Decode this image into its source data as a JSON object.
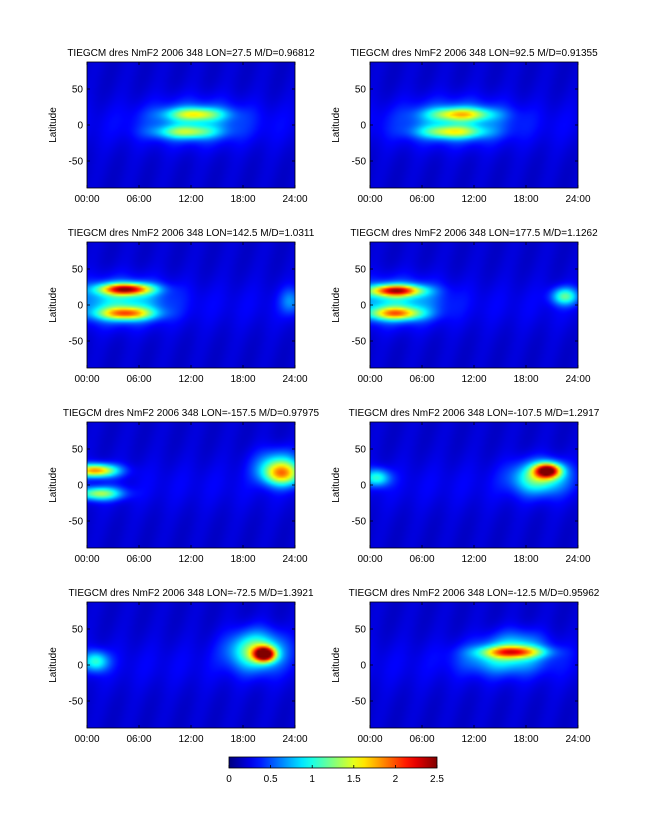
{
  "chart_data": [
    {
      "type": "heatmap",
      "title": "TIEGCM dres NmF2 2006 348 LON=27.5 M/D=0.96812",
      "xlabel": "",
      "ylabel": "Latitude",
      "xticks": [
        "00:00",
        "06:00",
        "12:00",
        "18:00",
        "24:00"
      ],
      "xlim": [
        0,
        24
      ],
      "yticks": [
        50,
        0,
        -50
      ],
      "ylim": [
        -87.5,
        87.5
      ],
      "blobs": [
        {
          "t": 12.5,
          "lat": 15,
          "st": 3.2,
          "sl": 9,
          "amp": 0.95
        },
        {
          "t": 11.5,
          "lat": -10,
          "st": 3.4,
          "sl": 9,
          "amp": 0.85
        },
        {
          "t": 12.5,
          "lat": 5,
          "st": 5.5,
          "sl": 28,
          "amp": 0.45
        }
      ]
    },
    {
      "type": "heatmap",
      "title": "TIEGCM dres NmF2 2006 348 LON=92.5 M/D=0.91355",
      "xlabel": "",
      "ylabel": "Latitude",
      "xticks": [
        "00:00",
        "06:00",
        "12:00",
        "18:00",
        "24:00"
      ],
      "xlim": [
        0,
        24
      ],
      "yticks": [
        50,
        0,
        -50
      ],
      "ylim": [
        -87.5,
        87.5
      ],
      "blobs": [
        {
          "t": 10.5,
          "lat": 15,
          "st": 3.5,
          "sl": 9,
          "amp": 1.05
        },
        {
          "t": 9.5,
          "lat": -10,
          "st": 3.6,
          "sl": 9,
          "amp": 0.95
        },
        {
          "t": 10,
          "lat": 5,
          "st": 6,
          "sl": 28,
          "amp": 0.5
        }
      ]
    },
    {
      "type": "heatmap",
      "title": "TIEGCM dres NmF2 2006 348 LON=142.5 M/D=1.0311",
      "xlabel": "",
      "ylabel": "Latitude",
      "xticks": [
        "00:00",
        "06:00",
        "12:00",
        "18:00",
        "24:00"
      ],
      "xlim": [
        0,
        24
      ],
      "yticks": [
        50,
        0,
        -50
      ],
      "ylim": [
        -87.5,
        87.5
      ],
      "blobs": [
        {
          "t": 4.5,
          "lat": 22,
          "st": 3,
          "sl": 8,
          "amp": 1.85
        },
        {
          "t": 4.5,
          "lat": -12,
          "st": 3.2,
          "sl": 9,
          "amp": 1.35
        },
        {
          "t": 4,
          "lat": 5,
          "st": 5,
          "sl": 28,
          "amp": 0.65
        },
        {
          "t": 23.5,
          "lat": 5,
          "st": 1.2,
          "sl": 18,
          "amp": 0.4
        }
      ]
    },
    {
      "type": "heatmap",
      "title": "TIEGCM dres NmF2 2006 348 LON=177.5 M/D=1.1262",
      "xlabel": "",
      "ylabel": "Latitude",
      "xticks": [
        "00:00",
        "06:00",
        "12:00",
        "18:00",
        "24:00"
      ],
      "xlim": [
        0,
        24
      ],
      "yticks": [
        50,
        0,
        -50
      ],
      "ylim": [
        -87.5,
        87.5
      ],
      "blobs": [
        {
          "t": 3,
          "lat": 20,
          "st": 3,
          "sl": 8,
          "amp": 1.75
        },
        {
          "t": 3,
          "lat": -12,
          "st": 3,
          "sl": 9,
          "amp": 1.3
        },
        {
          "t": 3,
          "lat": 5,
          "st": 5,
          "sl": 28,
          "amp": 0.6
        },
        {
          "t": 22.5,
          "lat": 12,
          "st": 1.5,
          "sl": 12,
          "amp": 0.9
        }
      ]
    },
    {
      "type": "heatmap",
      "title": "TIEGCM dres NmF2 2006 348 LON=-157.5 M/D=0.97975",
      "xlabel": "",
      "ylabel": "Latitude",
      "xticks": [
        "00:00",
        "06:00",
        "12:00",
        "18:00",
        "24:00"
      ],
      "xlim": [
        0,
        24
      ],
      "yticks": [
        50,
        0,
        -50
      ],
      "ylim": [
        -87.5,
        87.5
      ],
      "blobs": [
        {
          "t": 1,
          "lat": 20,
          "st": 2.5,
          "sl": 9,
          "amp": 1.6
        },
        {
          "t": 1.5,
          "lat": -12,
          "st": 2.5,
          "sl": 9,
          "amp": 1.1
        },
        {
          "t": 22.5,
          "lat": 15,
          "st": 2.2,
          "sl": 16,
          "amp": 1.3
        },
        {
          "t": 22,
          "lat": 30,
          "st": 2.5,
          "sl": 20,
          "amp": 0.6
        }
      ]
    },
    {
      "type": "heatmap",
      "title": "TIEGCM dres NmF2 2006 348 LON=-107.5 M/D=1.2917",
      "xlabel": "",
      "ylabel": "Latitude",
      "xticks": [
        "00:00",
        "06:00",
        "12:00",
        "18:00",
        "24:00"
      ],
      "xlim": [
        0,
        24
      ],
      "yticks": [
        50,
        0,
        -50
      ],
      "ylim": [
        -87.5,
        87.5
      ],
      "blobs": [
        {
          "t": 20.5,
          "lat": 20,
          "st": 1.5,
          "sl": 10,
          "amp": 2.0
        },
        {
          "t": 19.5,
          "lat": 10,
          "st": 3,
          "sl": 22,
          "amp": 1.0
        },
        {
          "t": 0.8,
          "lat": 10,
          "st": 1.5,
          "sl": 12,
          "amp": 0.8
        }
      ]
    },
    {
      "type": "heatmap",
      "title": "TIEGCM dres NmF2 2006 348 LON=-72.5 M/D=1.3921",
      "xlabel": "",
      "ylabel": "Latitude",
      "xticks": [
        "00:00",
        "06:00",
        "12:00",
        "18:00",
        "24:00"
      ],
      "xlim": [
        0,
        24
      ],
      "yticks": [
        50,
        0,
        -50
      ],
      "ylim": [
        -87.5,
        87.5
      ],
      "blobs": [
        {
          "t": 20.5,
          "lat": 15,
          "st": 1.2,
          "sl": 10,
          "amp": 2.1
        },
        {
          "t": 19.5,
          "lat": 20,
          "st": 3,
          "sl": 26,
          "amp": 1.1
        },
        {
          "t": 1,
          "lat": 5,
          "st": 1.5,
          "sl": 14,
          "amp": 0.8
        }
      ]
    },
    {
      "type": "heatmap",
      "title": "TIEGCM dres NmF2 2006 348 LON=-12.5 M/D=0.95962",
      "xlabel": "",
      "ylabel": "Latitude",
      "xticks": [
        "00:00",
        "06:00",
        "12:00",
        "18:00",
        "24:00"
      ],
      "xlim": [
        0,
        24
      ],
      "yticks": [
        50,
        0,
        -50
      ],
      "ylim": [
        -87.5,
        87.5
      ],
      "blobs": [
        {
          "t": 16.5,
          "lat": 18,
          "st": 3.5,
          "sl": 8,
          "amp": 1.2
        },
        {
          "t": 15.5,
          "lat": 10,
          "st": 4.5,
          "sl": 22,
          "amp": 0.7
        },
        {
          "t": 17,
          "lat": 30,
          "st": 3,
          "sl": 20,
          "amp": 0.4
        }
      ]
    }
  ],
  "colorbar": {
    "colormap": "jet",
    "range": [
      0,
      2.5
    ],
    "tick_values": [
      0,
      0.5,
      1,
      1.5,
      2,
      2.5
    ],
    "tick_labels": [
      "0",
      "0.5",
      "1",
      "1.5",
      "2",
      "2.5"
    ]
  }
}
